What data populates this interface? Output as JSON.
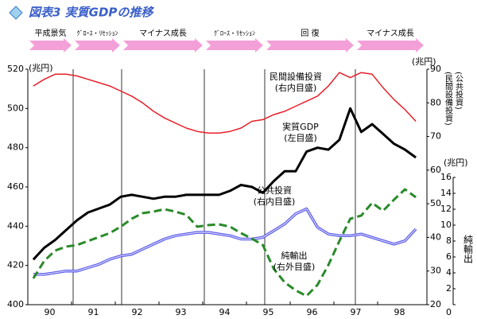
{
  "chart_data": {
    "type": "line",
    "title": "図表3 実質GDPの推移",
    "phases": [
      "平成景気",
      "ｸﾞﾛｰｽ・ﾘｾｯｼｮﾝ",
      "マイナス成長",
      "ｸﾞﾛｰｽ・ﾘｾｯｼｮﾝ",
      "回 復",
      "マイナス成長"
    ],
    "categories": [
      "90",
      null,
      null,
      null,
      "91",
      null,
      null,
      null,
      "92",
      null,
      null,
      null,
      "93",
      null,
      null,
      null,
      "94",
      null,
      null,
      null,
      "95",
      null,
      null,
      null,
      "96",
      null,
      null,
      null,
      "97",
      null,
      null,
      null,
      "98",
      null,
      null,
      null
    ],
    "ylabel": "(兆円)",
    "ylim": [
      400,
      520
    ],
    "yticks": [
      400,
      420,
      440,
      460,
      480,
      500,
      520
    ],
    "y2label": "(兆円)",
    "y2sublabels": [
      "(公共投資)",
      "(民間設備投資)"
    ],
    "y2lim": [
      20,
      90
    ],
    "y2ticks": [
      20,
      30,
      40,
      50,
      60,
      70,
      80,
      90
    ],
    "y3label": "(兆円)",
    "y3name": "純輸出",
    "y3lim": [
      0,
      16
    ],
    "y3ticks": [
      0,
      2,
      4,
      6,
      8,
      10,
      12,
      14,
      16
    ],
    "series": [
      {
        "name": "民間設備投資",
        "axis_note": "(右内目盛)",
        "axis": "y2",
        "color": "#e8202a",
        "values": [
          85,
          87,
          88.5,
          88.5,
          88,
          87,
          86,
          85,
          83.5,
          82,
          80,
          77.5,
          75.5,
          74,
          72.5,
          71.5,
          71,
          71,
          71.5,
          72.5,
          74.5,
          75,
          76.5,
          77.5,
          79,
          80.5,
          82,
          85,
          89,
          87.5,
          89,
          88.5,
          84.5,
          81,
          78,
          74.5
        ]
      },
      {
        "name": "実質GDP",
        "axis_note": "(左目盛)",
        "axis": "y",
        "color": "#000000",
        "values": [
          423,
          429,
          433,
          438,
          443,
          447,
          449,
          451,
          455,
          456,
          455,
          454,
          455,
          455,
          456,
          456,
          456,
          456,
          458,
          461,
          460,
          457,
          463,
          468,
          468,
          478,
          480,
          479,
          484,
          500,
          488,
          492,
          487,
          482,
          479,
          475
        ]
      },
      {
        "name": "公共投資",
        "axis_note": "(右内目盛)",
        "axis": "y2",
        "color": "#5a5ae6",
        "values": [
          29,
          29,
          29.5,
          30,
          30,
          31,
          32,
          33.5,
          34.5,
          35,
          36.5,
          38,
          39.5,
          40.5,
          41,
          41.5,
          41.5,
          41,
          40.5,
          39.5,
          39.5,
          40,
          42,
          44,
          47,
          48.5,
          43,
          41,
          40.5,
          40.5,
          41,
          40,
          39,
          38,
          39,
          42.5
        ]
      },
      {
        "name": "純輸出",
        "axis_note": "(右外目盛)",
        "axis": "y3",
        "color": "#2a8a2a",
        "dashed": true,
        "values": [
          3.3,
          5.5,
          6.8,
          7.3,
          7.5,
          8,
          8.5,
          9,
          9.8,
          10.8,
          11.5,
          11.7,
          12,
          11.7,
          11.3,
          9.8,
          10,
          10.1,
          9.8,
          9,
          8.3,
          7.5,
          4.5,
          2.8,
          1.8,
          1.1,
          2.5,
          5,
          8,
          10.8,
          11.2,
          12.8,
          11.8,
          13.2,
          14.5,
          13.5
        ]
      }
    ]
  }
}
